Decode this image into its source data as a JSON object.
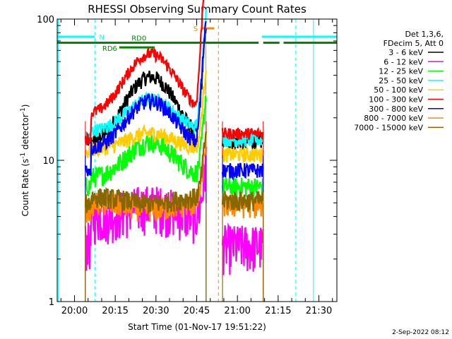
{
  "chart_data": {
    "type": "line",
    "title": "RHESSI Observing Summary Count Rates",
    "xlabel": "Start Time (01-Nov-17 19:51:22)",
    "ylabel_main": "Count Rate (s",
    "ylabel_sup1": "-1",
    "ylabel_mid": " detector",
    "ylabel_sup2": "-1",
    "ylabel_end": ")",
    "y_scale": "log",
    "ylim": [
      1,
      100
    ],
    "y_ticks": [
      "1",
      "10",
      "100"
    ],
    "x_range_minutes": [
      -6.37,
      96.63
    ],
    "x_ticks": [
      {
        "label": "20:00",
        "min": 0
      },
      {
        "label": "20:15",
        "min": 15
      },
      {
        "label": "20:30",
        "min": 30
      },
      {
        "label": "20:45",
        "min": 45
      },
      {
        "label": "21:00",
        "min": 60
      },
      {
        "label": "21:15",
        "min": 75
      },
      {
        "label": "21:30",
        "min": 90
      }
    ],
    "legend_header": [
      "Det 1,3,6,",
      "FDecim 5, Att 0"
    ],
    "legend_placement": "right",
    "series": [
      {
        "name": "3 - 6 keV",
        "color": "#000000",
        "base": 13.0,
        "pre": 13.5,
        "post": 13.5,
        "amp": 3.0,
        "spike": 6,
        "noise": 0.09
      },
      {
        "name": "6 - 12 keV",
        "color": "#ff00ff",
        "base": 4.0,
        "pre": 2.6,
        "post": 2.5,
        "amp": 1.2,
        "spike": 1.5,
        "noise": 0.28
      },
      {
        "name": "12 - 25 keV",
        "color": "#00ff00",
        "base": 7.5,
        "pre": 6.5,
        "post": 6.5,
        "amp": 1.8,
        "spike": 3,
        "noise": 0.12
      },
      {
        "name": "25 - 50 keV",
        "color": "#00ffff",
        "base": 16.0,
        "pre": 14.5,
        "post": 14.0,
        "amp": 1.7,
        "spike": 6,
        "noise": 0.08
      },
      {
        "name": "50 - 100 keV",
        "color": "#ffcc00",
        "base": 12.0,
        "pre": 11.5,
        "post": 11.0,
        "amp": 1.3,
        "spike": 3,
        "noise": 0.09
      },
      {
        "name": "100 - 300 keV",
        "color": "#ff0000",
        "base": 21.0,
        "pre": 14.0,
        "post": 15.5,
        "amp": 2.7,
        "spike": 12,
        "noise": 0.07
      },
      {
        "name": "300 - 800 keV",
        "color": "#0000ff",
        "base": 12.0,
        "pre": 8.5,
        "post": 8.5,
        "amp": 2.2,
        "spike": 8,
        "noise": 0.09
      },
      {
        "name": "800 - 7000 keV",
        "color": "#ff8800",
        "base": 5.0,
        "pre": 4.5,
        "post": 4.8,
        "amp": 0.9,
        "spike": 2,
        "noise": 0.14
      },
      {
        "name": "7000 - 15000 keV",
        "color": "#886600",
        "base": 5.5,
        "pre": 5.0,
        "post": 5.2,
        "amp": 0.9,
        "spike": 2,
        "noise": 0.12
      }
    ],
    "data_intervals_minutes": [
      [
        4.0,
        48.5
      ],
      [
        54.5,
        69.5
      ]
    ],
    "cyan_vlines_minutes": [
      -6.0,
      88.0
    ],
    "cyan_dashed_vlines_minutes": [
      7.5,
      81.5
    ],
    "orange_vlines_minutes": [
      48.4
    ],
    "orange_dashed_vlines_minutes": [
      53.0
    ],
    "flag_bars": [
      {
        "label": "N",
        "color": "#00ffff",
        "segments": [
          [
            -6.4,
            7.5
          ],
          [
            69.0,
            96.6
          ]
        ],
        "y_value": 75
      },
      {
        "label": "RD0",
        "color": "#008800",
        "segments": [
          [
            -6.4,
            67.8
          ],
          [
            69.5,
            75.5
          ],
          [
            77.0,
            96.6
          ]
        ],
        "y_value": 68
      },
      {
        "label": "RD6",
        "color": "#008800",
        "segments": [
          [
            16.5,
            29.5
          ]
        ],
        "y_value": 63
      },
      {
        "label": "S",
        "color": "#ff8800",
        "segments": [
          [
            46.5,
            51.5
          ]
        ],
        "y_value": 86
      }
    ],
    "timestamp": "2-Sep-2022 08:12"
  }
}
